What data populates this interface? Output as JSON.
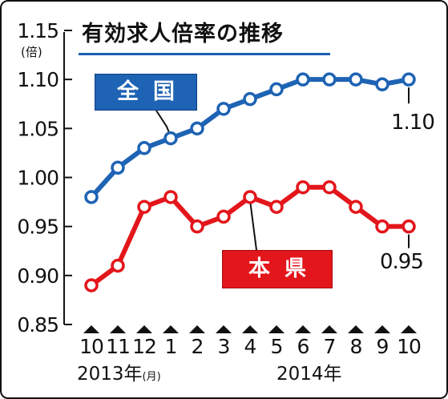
{
  "chart_data": {
    "type": "line",
    "title": "有効求人倍率の推移",
    "y_unit": "(倍)",
    "categories": [
      "10",
      "11",
      "12",
      "1",
      "2",
      "3",
      "4",
      "5",
      "6",
      "7",
      "8",
      "9",
      "10"
    ],
    "x_year_labels": [
      {
        "text": "2013年",
        "note": "(月)"
      },
      {
        "text": "2014年",
        "note": ""
      }
    ],
    "ylim": [
      0.85,
      1.15
    ],
    "yticks": [
      "0.85",
      "0.90",
      "0.95",
      "1.00",
      "1.05",
      "1.10",
      "1.15"
    ],
    "grid": false,
    "series": [
      {
        "name": "全国",
        "color": "#1e63b4",
        "values": [
          0.98,
          1.01,
          1.03,
          1.04,
          1.05,
          1.07,
          1.08,
          1.09,
          1.1,
          1.1,
          1.1,
          1.095,
          1.1
        ],
        "end_label": "1.10"
      },
      {
        "name": "本県",
        "color": "#e3161b",
        "values": [
          0.89,
          0.91,
          0.97,
          0.98,
          0.95,
          0.96,
          0.98,
          0.97,
          0.99,
          0.99,
          0.97,
          0.95,
          0.95
        ],
        "end_label": "0.95"
      }
    ]
  }
}
